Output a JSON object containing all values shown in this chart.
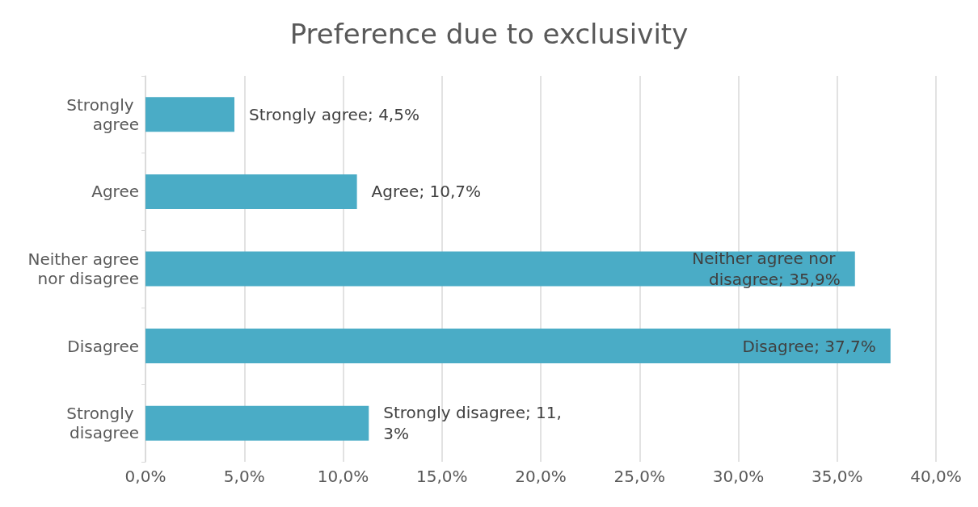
{
  "chart_data": {
    "type": "bar",
    "orientation": "horizontal",
    "title": "Preference due to exclusivity",
    "categories": [
      "Strongly agree",
      "Agree",
      "Neither agree nor disagree",
      "Disagree",
      "Strongly disagree"
    ],
    "values": [
      4.5,
      10.7,
      35.9,
      37.7,
      11.3
    ],
    "value_labels": [
      "Strongly agree; 4,5%",
      "Agree; 10,7%",
      "Neither agree nor disagree; 35,9%",
      "Disagree; 37,7%",
      "Strongly disagree; 11,3%"
    ],
    "color": "#4aacc6",
    "xlim": [
      0,
      40
    ],
    "xticks": [
      {
        "value": 0,
        "label": "0,0%"
      },
      {
        "value": 5,
        "label": "5,0%"
      },
      {
        "value": 10,
        "label": "10,0%"
      },
      {
        "value": 15,
        "label": "15,0%"
      },
      {
        "value": 20,
        "label": "20,0%"
      },
      {
        "value": 25,
        "label": "25,0%"
      },
      {
        "value": 30,
        "label": "30,0%"
      },
      {
        "value": 35,
        "label": "35,0%"
      },
      {
        "value": 40,
        "label": "40,0%"
      }
    ],
    "grid": "x"
  }
}
